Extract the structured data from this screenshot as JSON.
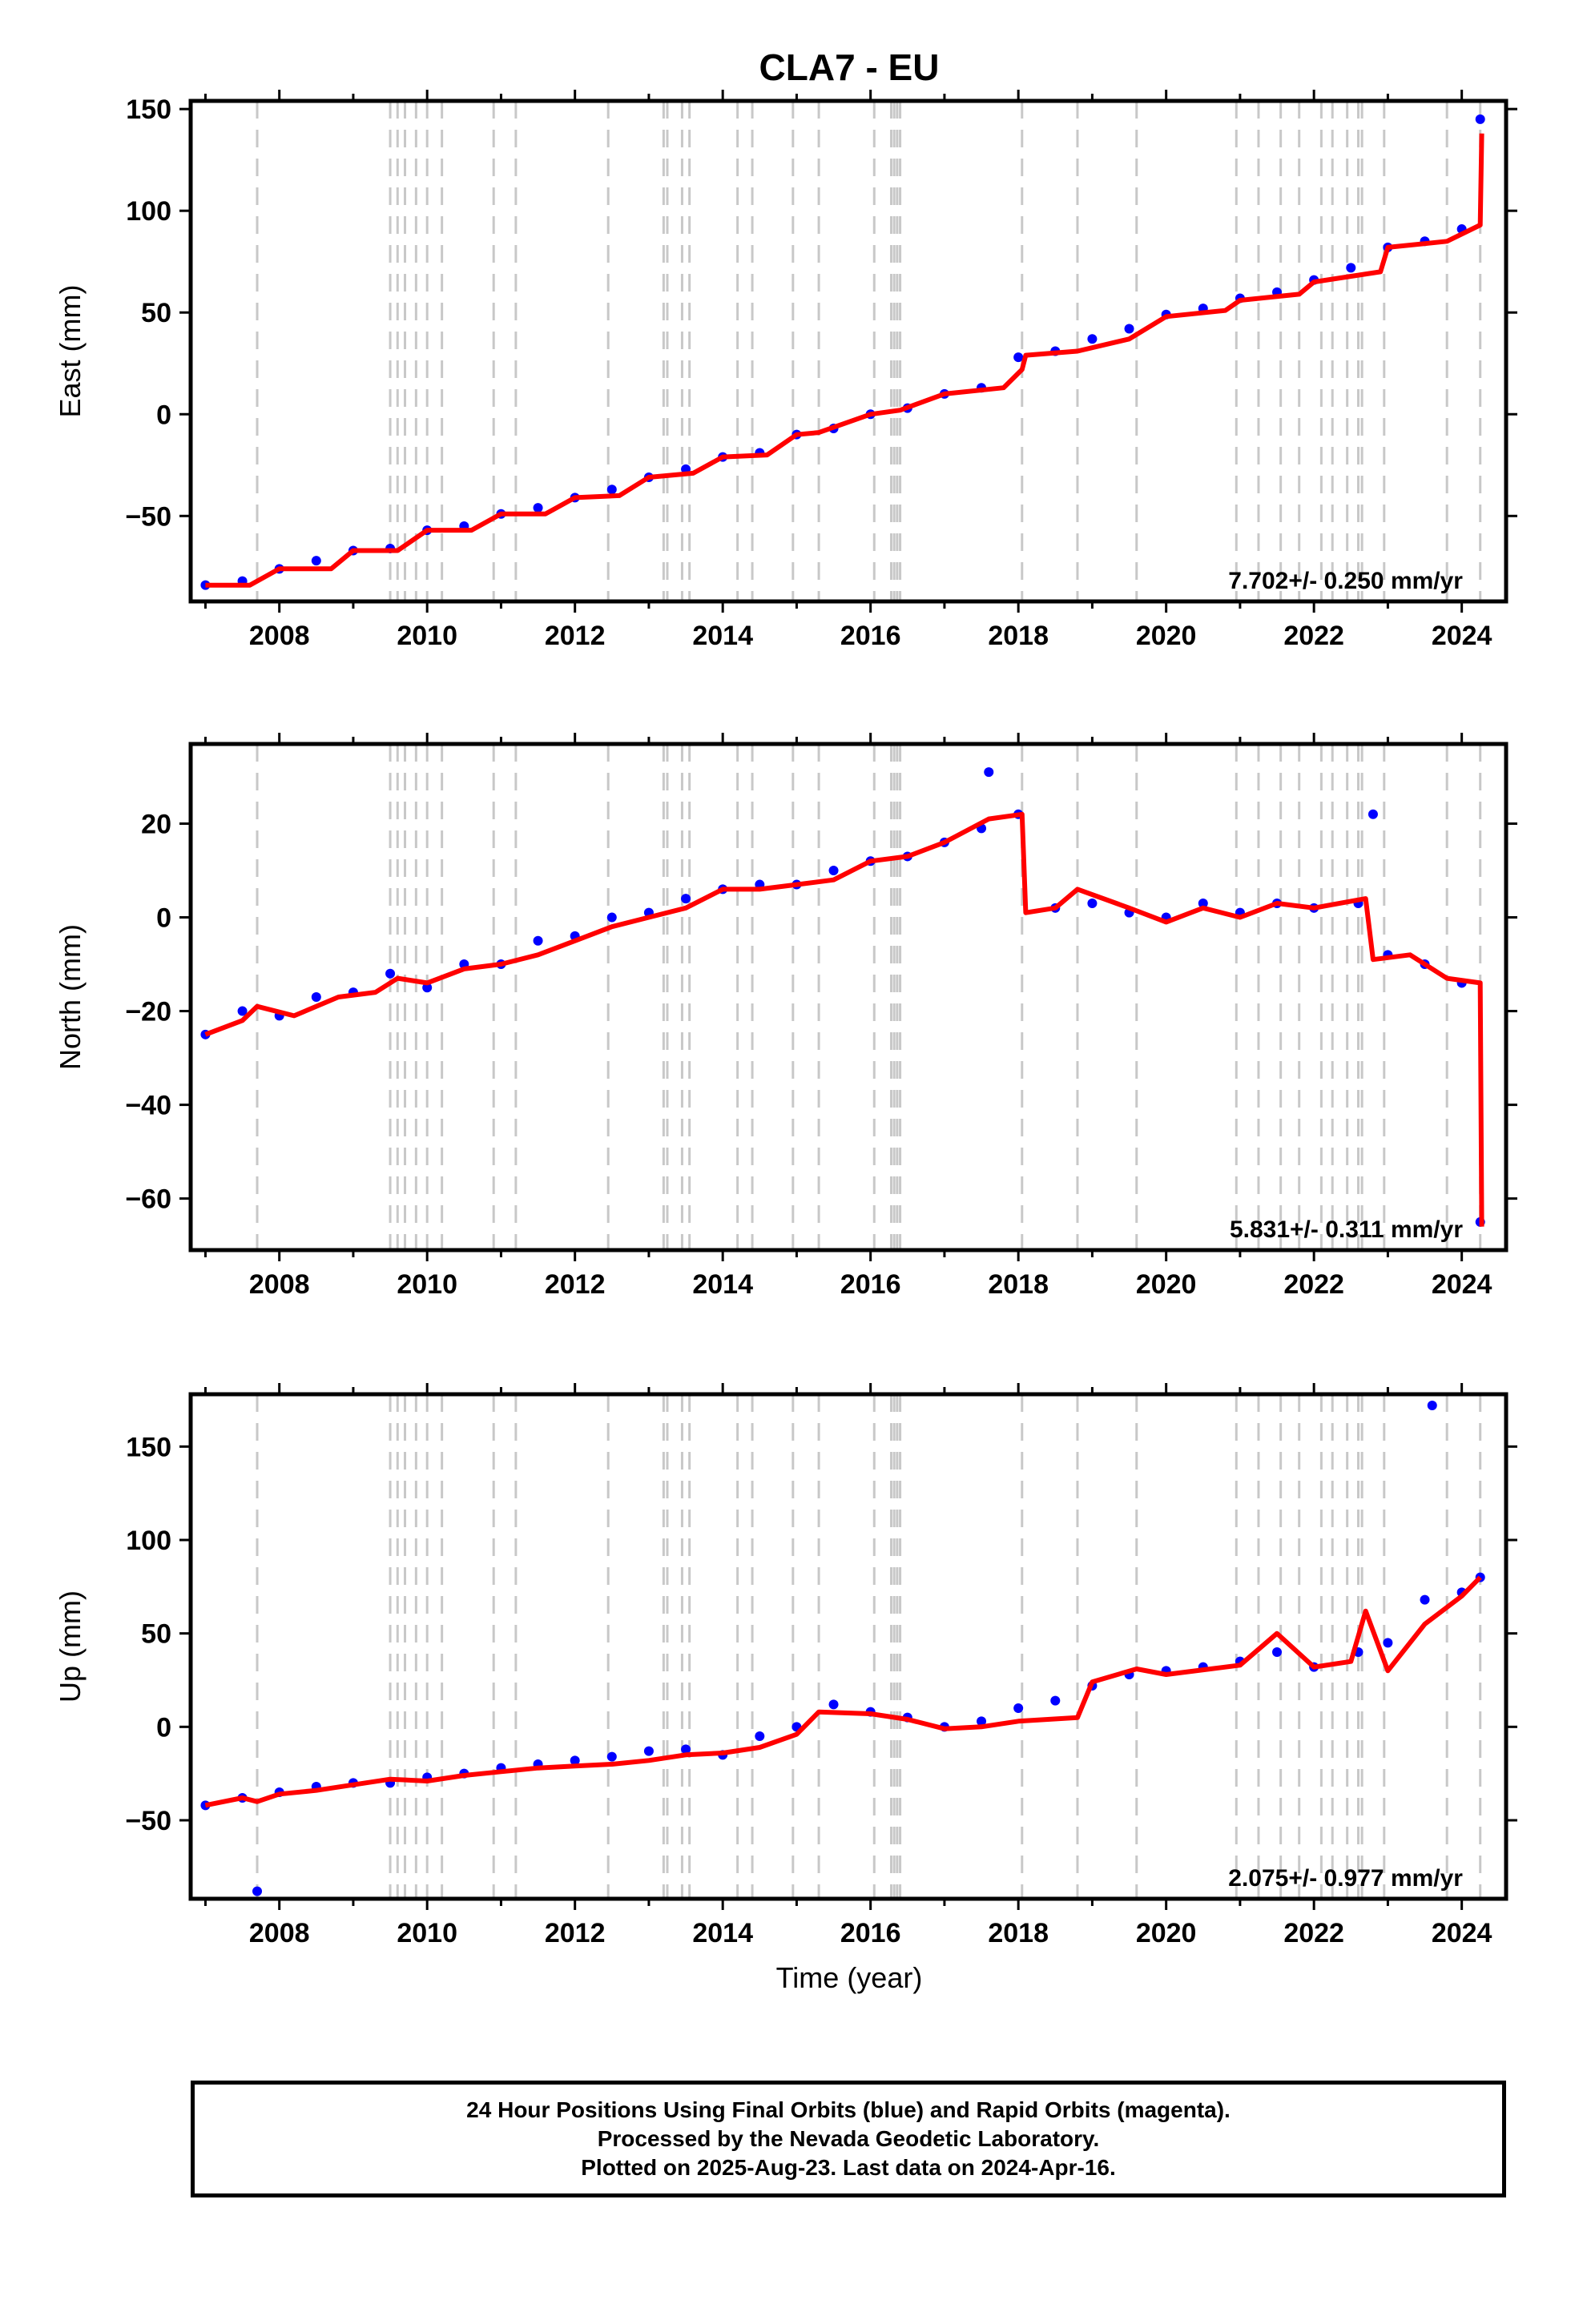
{
  "title": "CLA7 - EU",
  "xlabel": "Time (year)",
  "footer": {
    "line1": "24 Hour Positions Using Final Orbits (blue) and Rapid Orbits (magenta).",
    "line2": "Processed by the Nevada Geodetic Laboratory.",
    "line3": "Plotted on 2025-Aug-23. Last data on 2024-Apr-16."
  },
  "colors": {
    "points": "#0000ff",
    "model": "#ff0000",
    "event_lines": "#c8c8c8",
    "axes": "#000000"
  },
  "chart_data": [
    {
      "type": "scatter",
      "panel": "east",
      "ylabel": "East (mm)",
      "rate_label": "7.702+/- 0.250 mm/yr",
      "xlim": [
        2006.8,
        2024.6
      ],
      "ylim": [
        -92,
        154
      ],
      "x_ticks": [
        2008,
        2010,
        2012,
        2014,
        2016,
        2018,
        2020,
        2022,
        2024
      ],
      "y_ticks": [
        -50,
        0,
        50,
        100,
        150
      ],
      "grid": false,
      "series": [
        {
          "role": "points",
          "color": "#0000ff",
          "x": [
            2007.0,
            2007.5,
            2008.0,
            2008.5,
            2009.0,
            2009.5,
            2010.0,
            2010.5,
            2011.0,
            2011.5,
            2012.0,
            2012.5,
            2013.0,
            2013.5,
            2014.0,
            2014.5,
            2015.0,
            2015.5,
            2016.0,
            2016.5,
            2017.0,
            2017.5,
            2018.0,
            2018.5,
            2019.0,
            2019.5,
            2020.0,
            2020.5,
            2021.0,
            2021.5,
            2022.0,
            2022.5,
            2023.0,
            2023.5,
            2024.0,
            2024.25
          ],
          "y": [
            -84,
            -82,
            -76,
            -72,
            -67,
            -66,
            -57,
            -55,
            -49,
            -46,
            -41,
            -37,
            -31,
            -27,
            -21,
            -19,
            -10,
            -7,
            0,
            3,
            10,
            13,
            28,
            31,
            37,
            42,
            49,
            52,
            57,
            60,
            66,
            72,
            82,
            85,
            91,
            145
          ]
        },
        {
          "role": "model",
          "color": "#ff0000",
          "x": [
            2007.0,
            2007.6,
            2008.0,
            2008.7,
            2009.0,
            2009.6,
            2010.0,
            2010.6,
            2011.0,
            2011.6,
            2012.0,
            2012.6,
            2013.0,
            2013.6,
            2014.0,
            2014.6,
            2015.0,
            2015.3,
            2016.0,
            2016.4,
            2017.0,
            2017.8,
            2018.05,
            2018.1,
            2018.8,
            2019.5,
            2020.0,
            2020.8,
            2021.0,
            2021.8,
            2022.0,
            2022.9,
            2023.0,
            2023.8,
            2024.25,
            2024.27
          ],
          "y": [
            -84,
            -84,
            -76,
            -76,
            -67,
            -67,
            -57,
            -57,
            -49,
            -49,
            -41,
            -40,
            -31,
            -29,
            -21,
            -20,
            -10,
            -9,
            0,
            2,
            10,
            13,
            22,
            29,
            31,
            37,
            48,
            51,
            56,
            59,
            65,
            70,
            82,
            85,
            93,
            138
          ]
        }
      ]
    },
    {
      "type": "scatter",
      "panel": "north",
      "ylabel": "North (mm)",
      "rate_label": "5.831+/- 0.311 mm/yr",
      "xlim": [
        2006.8,
        2024.6
      ],
      "ylim": [
        -71,
        37
      ],
      "x_ticks": [
        2008,
        2010,
        2012,
        2014,
        2016,
        2018,
        2020,
        2022,
        2024
      ],
      "y_ticks": [
        -60,
        -40,
        -20,
        0,
        20
      ],
      "grid": false,
      "series": [
        {
          "role": "points",
          "color": "#0000ff",
          "x": [
            2007.0,
            2007.5,
            2008.0,
            2008.5,
            2009.0,
            2009.5,
            2010.0,
            2010.5,
            2011.0,
            2011.5,
            2012.0,
            2012.5,
            2013.0,
            2013.5,
            2014.0,
            2014.5,
            2015.0,
            2015.5,
            2016.0,
            2016.5,
            2017.0,
            2017.5,
            2017.6,
            2018.0,
            2018.5,
            2019.0,
            2019.5,
            2020.0,
            2020.5,
            2021.0,
            2021.5,
            2022.0,
            2022.6,
            2022.8,
            2023.0,
            2023.5,
            2024.0,
            2024.25
          ],
          "y": [
            -25,
            -20,
            -21,
            -17,
            -16,
            -12,
            -15,
            -10,
            -10,
            -5,
            -4,
            0,
            1,
            4,
            6,
            7,
            7,
            10,
            12,
            13,
            16,
            19,
            31,
            22,
            2,
            3,
            1,
            0,
            3,
            1,
            3,
            2,
            3,
            22,
            -8,
            -10,
            -14,
            -65
          ]
        },
        {
          "role": "model",
          "color": "#ff0000",
          "x": [
            2007.0,
            2007.5,
            2007.7,
            2008.2,
            2008.8,
            2009.3,
            2009.6,
            2010.0,
            2010.5,
            2011.0,
            2011.5,
            2012.0,
            2012.5,
            2013.0,
            2013.5,
            2014.0,
            2014.5,
            2015.0,
            2015.5,
            2016.0,
            2016.5,
            2017.0,
            2017.6,
            2018.05,
            2018.1,
            2018.5,
            2018.8,
            2019.5,
            2020.0,
            2020.5,
            2021.0,
            2021.5,
            2022.0,
            2022.7,
            2022.8,
            2023.3,
            2023.8,
            2024.25,
            2024.27
          ],
          "y": [
            -25,
            -22,
            -19,
            -21,
            -17,
            -16,
            -13,
            -14,
            -11,
            -10,
            -8,
            -5,
            -2,
            0,
            2,
            6,
            6,
            7,
            8,
            12,
            13,
            16,
            21,
            22,
            1,
            2,
            6,
            2,
            -1,
            2,
            0,
            3,
            2,
            4,
            -9,
            -8,
            -13,
            -14,
            -66
          ]
        }
      ]
    },
    {
      "type": "scatter",
      "panel": "up",
      "ylabel": "Up (mm)",
      "rate_label": "2.075+/- 0.977 mm/yr",
      "xlim": [
        2006.8,
        2024.6
      ],
      "ylim": [
        -92,
        178
      ],
      "x_ticks": [
        2008,
        2010,
        2012,
        2014,
        2016,
        2018,
        2020,
        2022,
        2024
      ],
      "y_ticks": [
        -50,
        0,
        50,
        100,
        150
      ],
      "grid": false,
      "series": [
        {
          "role": "points",
          "color": "#0000ff",
          "x": [
            2007.0,
            2007.5,
            2007.7,
            2008.0,
            2008.5,
            2009.0,
            2009.5,
            2010.0,
            2010.5,
            2011.0,
            2011.5,
            2012.0,
            2012.5,
            2013.0,
            2013.5,
            2014.0,
            2014.5,
            2015.0,
            2015.5,
            2016.0,
            2016.5,
            2017.0,
            2017.5,
            2018.0,
            2018.5,
            2019.0,
            2019.5,
            2020.0,
            2020.5,
            2021.0,
            2021.5,
            2022.0,
            2022.6,
            2023.0,
            2023.5,
            2023.6,
            2024.0,
            2024.25
          ],
          "y": [
            -42,
            -38,
            -88,
            -35,
            -32,
            -30,
            -30,
            -27,
            -25,
            -22,
            -20,
            -18,
            -16,
            -13,
            -12,
            -15,
            -5,
            0,
            12,
            8,
            5,
            0,
            3,
            10,
            14,
            22,
            28,
            30,
            32,
            35,
            40,
            32,
            40,
            45,
            68,
            172,
            72,
            80
          ]
        },
        {
          "role": "model",
          "color": "#ff0000",
          "x": [
            2007.0,
            2007.5,
            2007.7,
            2008.0,
            2008.5,
            2009.0,
            2009.5,
            2010.0,
            2010.5,
            2011.0,
            2011.5,
            2012.0,
            2012.5,
            2013.0,
            2013.5,
            2014.0,
            2014.5,
            2015.0,
            2015.3,
            2016.0,
            2016.5,
            2017.0,
            2017.5,
            2018.0,
            2018.8,
            2019.0,
            2019.6,
            2020.0,
            2020.6,
            2021.0,
            2021.5,
            2022.0,
            2022.5,
            2022.7,
            2023.0,
            2023.5,
            2024.0,
            2024.25
          ],
          "y": [
            -42,
            -38,
            -40,
            -36,
            -34,
            -31,
            -28,
            -29,
            -26,
            -24,
            -22,
            -21,
            -20,
            -18,
            -15,
            -14,
            -11,
            -4,
            8,
            7,
            4,
            -1,
            0,
            3,
            5,
            24,
            31,
            28,
            31,
            33,
            50,
            32,
            35,
            62,
            30,
            55,
            70,
            80
          ]
        }
      ]
    }
  ]
}
